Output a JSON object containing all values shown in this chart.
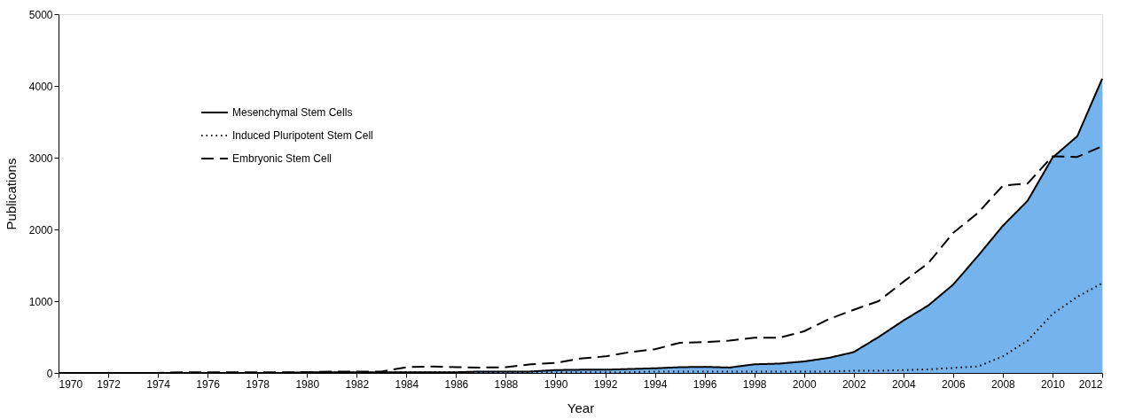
{
  "chart_data": {
    "type": "line",
    "xlabel": "Year",
    "ylabel": "Publications",
    "x": [
      1970,
      1971,
      1972,
      1973,
      1974,
      1975,
      1976,
      1977,
      1978,
      1979,
      1980,
      1981,
      1982,
      1983,
      1984,
      1985,
      1986,
      1987,
      1988,
      1989,
      1990,
      1991,
      1992,
      1993,
      1994,
      1995,
      1996,
      1997,
      1998,
      1999,
      2000,
      2001,
      2002,
      2003,
      2004,
      2005,
      2006,
      2007,
      2008,
      2009,
      2010,
      2011,
      2012
    ],
    "series": [
      {
        "name": "Mesenchymal Stem Cells",
        "type": "area",
        "color": "#75b3ec",
        "line_style": "solid",
        "values": [
          0,
          0,
          0,
          0,
          0,
          0,
          0,
          0,
          0,
          0,
          10,
          10,
          10,
          10,
          10,
          10,
          10,
          20,
          20,
          20,
          40,
          45,
          45,
          55,
          65,
          80,
          85,
          75,
          120,
          130,
          160,
          210,
          290,
          500,
          730,
          940,
          1230,
          1630,
          2050,
          2400,
          3000,
          3300,
          4100
        ]
      },
      {
        "name": "Induced Pluripotent Stem Cell",
        "color": "#000000",
        "line_style": "dotted",
        "values": [
          0,
          0,
          0,
          0,
          0,
          0,
          0,
          0,
          0,
          0,
          0,
          0,
          0,
          0,
          10,
          10,
          10,
          10,
          10,
          10,
          10,
          10,
          10,
          10,
          20,
          20,
          20,
          20,
          20,
          20,
          20,
          20,
          30,
          30,
          40,
          50,
          70,
          90,
          230,
          450,
          820,
          1060,
          1250
        ]
      },
      {
        "name": "Embryonic Stem Cell",
        "color": "#000000",
        "line_style": "dashed",
        "values": [
          0,
          0,
          0,
          0,
          0,
          10,
          10,
          10,
          10,
          10,
          10,
          20,
          20,
          20,
          80,
          90,
          80,
          75,
          80,
          120,
          140,
          200,
          230,
          290,
          330,
          420,
          430,
          450,
          490,
          490,
          580,
          750,
          880,
          1000,
          1270,
          1530,
          1950,
          2230,
          2610,
          2640,
          3020,
          3010,
          3160
        ]
      }
    ],
    "xlim": [
      1970,
      2012
    ],
    "ylim": [
      0,
      5000
    ],
    "xticks": [
      1970,
      1972,
      1974,
      1976,
      1978,
      1980,
      1982,
      1984,
      1986,
      1988,
      1990,
      1992,
      1994,
      1996,
      1998,
      2000,
      2002,
      2004,
      2006,
      2008,
      2010,
      2012
    ],
    "yticks": [
      0,
      1000,
      2000,
      3000,
      4000,
      5000
    ],
    "grid": false,
    "legend": "top left",
    "marker": "none"
  }
}
